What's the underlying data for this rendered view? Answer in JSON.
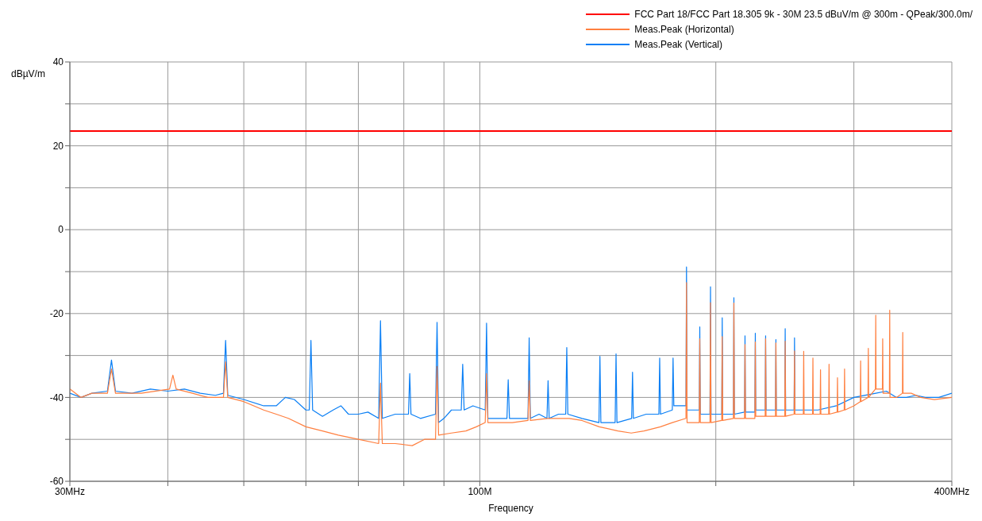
{
  "chart_data": {
    "type": "line",
    "xlabel": "Frequency",
    "ylabel": "dBµV/m",
    "xlim": [
      30,
      400
    ],
    "log": "x",
    "xticks": [
      {
        "value": 30,
        "label": "30MHz"
      },
      {
        "value": 40,
        "label": null
      },
      {
        "value": 50,
        "label": null
      },
      {
        "value": 60,
        "label": null
      },
      {
        "value": 70,
        "label": null
      },
      {
        "value": 80,
        "label": null
      },
      {
        "value": 90,
        "label": null
      },
      {
        "value": 100,
        "label": "100M"
      },
      {
        "value": 200,
        "label": null
      },
      {
        "value": 300,
        "label": null
      },
      {
        "value": 400,
        "label": "400MHz"
      }
    ],
    "ylim": [
      -60,
      40
    ],
    "yticks": [
      -60,
      {
        "value": -50,
        "label": null
      },
      -40,
      {
        "value": -30,
        "label": null
      },
      -20,
      {
        "value": -10,
        "label": null
      },
      0,
      {
        "value": 10,
        "label": null
      },
      20,
      {
        "value": 30,
        "label": null
      },
      40
    ],
    "grid": true,
    "legend": "top right",
    "marker": "none",
    "line_style": "solid",
    "series": [
      {
        "name": "FCC Part 18/FCC Part 18.305 9k - 30M 23.5 dBuV/m @ 300m  - QPeak/300.0m/",
        "color": "#ff0000",
        "x": [
          30,
          400
        ],
        "values": [
          23.5,
          23.5
        ]
      },
      {
        "name": "Meas.Peak (Horizontal)",
        "color": "#ff7f3f",
        "x": [
          30,
          31,
          32,
          33.5,
          33.9,
          34.3,
          37,
          40.2,
          40.6,
          41,
          43,
          45,
          47.1,
          47.4,
          47.7,
          50,
          53,
          55,
          57,
          60,
          63,
          66,
          70,
          74.3,
          74.7,
          75.1,
          78,
          82,
          85,
          87.8,
          88.2,
          88.6,
          92,
          96,
          99,
          101.6,
          102,
          102.4,
          106,
          110,
          115.2,
          115.6,
          116,
          122,
          130,
          135,
          142,
          150,
          156,
          162,
          170,
          176,
          183.2,
          183.5,
          183.8,
          190.5,
          190.8,
          191.1,
          196.6,
          196.9,
          197.2,
          203.5,
          203.8,
          204.1,
          210.6,
          210.9,
          211.2,
          217.6,
          217.9,
          218.2,
          224.3,
          224.6,
          224.9,
          231.2,
          231.5,
          231.8,
          238.3,
          238.6,
          238.9,
          244.9,
          245.2,
          245.5,
          251.7,
          252,
          252.3,
          258.6,
          258.9,
          259.2,
          265.7,
          266,
          266.3,
          271.7,
          272,
          272.3,
          278.6,
          278.9,
          279.2,
          285.6,
          285.9,
          286.2,
          291.6,
          291.9,
          292.2,
          300,
          305.7,
          306,
          306.3,
          312.7,
          313,
          313.3,
          319.6,
          319.9,
          320.2,
          326.2,
          326.5,
          326.8,
          333,
          333.3,
          333.6,
          340,
          346,
          346.3,
          346.6,
          355,
          365,
          380,
          400
        ],
        "values": [
          -38,
          -40,
          -39,
          -39,
          -33.2,
          -39,
          -39,
          -38,
          -34.7,
          -38,
          -39,
          -40,
          -40,
          -31.5,
          -40,
          -41,
          -43,
          -44,
          -45,
          -47,
          -48,
          -49,
          -50,
          -51,
          -36.6,
          -51,
          -51,
          -51.5,
          -50,
          -50,
          -32.6,
          -49,
          -48.5,
          -48,
          -47,
          -46,
          -34.3,
          -46,
          -46,
          -46,
          -45.5,
          -36,
          -45.5,
          -45,
          -45,
          -45.5,
          -47,
          -48,
          -48.5,
          -48,
          -47,
          -46,
          -45,
          -12.6,
          -46,
          -46,
          -26,
          -46,
          -46,
          -17.4,
          -46,
          -45.5,
          -25.5,
          -45.5,
          -45,
          -17.5,
          -45,
          -45,
          -27.4,
          -45,
          -45,
          -26.8,
          -44.5,
          -44.5,
          -26,
          -44.5,
          -44.5,
          -27,
          -44.5,
          -44.5,
          -26.6,
          -44.5,
          -44,
          -28.9,
          -44,
          -44,
          -29,
          -44,
          -44,
          -30.6,
          -44,
          -44,
          -33.4,
          -44,
          -44,
          -32.1,
          -44,
          -43.5,
          -35.3,
          -43.5,
          -43,
          -33.2,
          -43,
          -42,
          -41,
          -31.3,
          -41,
          -40,
          -28.3,
          -40,
          -38,
          -20.4,
          -38,
          -38,
          -26,
          -39,
          -39,
          -19.2,
          -40,
          -40,
          -39,
          -24.5,
          -39,
          -39,
          -40,
          -40.5,
          -40
        ]
      },
      {
        "name": "Meas.Peak (Vertical)",
        "color": "#0a7ff5",
        "x": [
          30,
          31,
          32,
          33.5,
          33.9,
          34.3,
          36,
          38,
          40,
          42,
          44,
          46,
          47.1,
          47.4,
          47.7,
          50,
          53,
          55,
          56.5,
          58,
          60,
          60.6,
          60.9,
          61.2,
          63,
          65,
          66.5,
          68,
          70,
          72,
          74.3,
          74.7,
          75.1,
          78,
          81.1,
          81.4,
          81.7,
          84,
          87.8,
          88.2,
          88.6,
          90,
          92,
          94.7,
          95.1,
          95.5,
          98,
          101.6,
          102,
          102.4,
          105,
          108.3,
          108.7,
          109.1,
          112,
          115.2,
          115.6,
          116,
          119,
          121.8,
          122.2,
          122.6,
          126,
          128.7,
          129.1,
          129.5,
          135,
          141.9,
          142.3,
          142.7,
          148.8,
          149.2,
          149.6,
          156.2,
          156.6,
          157,
          163,
          169.2,
          169.6,
          170,
          176,
          176.4,
          176.8,
          180,
          183.2,
          183.5,
          183.8,
          190.5,
          190.8,
          191.1,
          196.6,
          196.9,
          197.2,
          203.5,
          203.8,
          204.1,
          210.6,
          210.9,
          211.2,
          217.6,
          217.9,
          218.2,
          224.3,
          224.6,
          224.9,
          231.2,
          231.5,
          231.8,
          238.3,
          238.6,
          238.9,
          244.9,
          245.2,
          245.5,
          251.7,
          252,
          252.3,
          260,
          270,
          285,
          300,
          320,
          330,
          340,
          350,
          360,
          370,
          385,
          400
        ],
        "values": [
          -39,
          -40,
          -39,
          -38.5,
          -31.1,
          -38.5,
          -39,
          -38,
          -38.5,
          -38,
          -39,
          -39.5,
          -39,
          -26.4,
          -39.5,
          -40.5,
          -42,
          -42,
          -40,
          -40.5,
          -43,
          -43,
          -26.4,
          -43,
          -44.5,
          -43,
          -42,
          -44,
          -44,
          -43.5,
          -45,
          -21.7,
          -45,
          -44,
          -44,
          -34.3,
          -44,
          -45,
          -44,
          -22.1,
          -46,
          -45,
          -43,
          -43,
          -32.1,
          -43,
          -42,
          -43,
          -22.3,
          -45,
          -45,
          -45,
          -35.8,
          -45,
          -45,
          -45,
          -25.8,
          -45,
          -44,
          -45,
          -36,
          -45,
          -44,
          -44,
          -28.1,
          -44,
          -45,
          -46,
          -30.2,
          -46,
          -46,
          -29.6,
          -46,
          -45,
          -34,
          -45,
          -44,
          -44,
          -30.6,
          -44,
          -43,
          -30.6,
          -42,
          -42,
          -42,
          -8.9,
          -43,
          -43,
          -23.2,
          -44,
          -44,
          -13.6,
          -44,
          -44,
          -21,
          -44,
          -44,
          -16.2,
          -44,
          -43.5,
          -25.3,
          -43.5,
          -43.5,
          -24.7,
          -43,
          -43,
          -25.3,
          -43,
          -43,
          -26.2,
          -43,
          -43,
          -23.6,
          -43,
          -43,
          -25.8,
          -43,
          -43,
          -43,
          -42,
          -40,
          -39,
          -38.5,
          -40,
          -40,
          -39.5,
          -40,
          -40,
          -39
        ]
      }
    ]
  }
}
